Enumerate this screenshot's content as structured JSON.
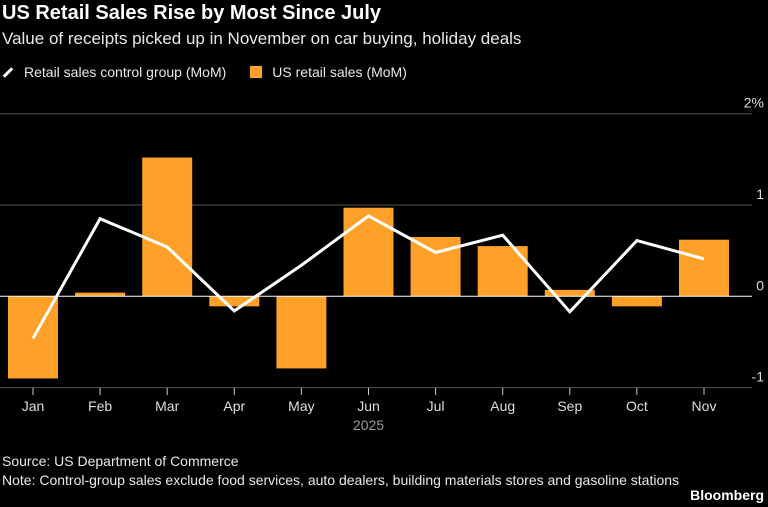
{
  "title": "US Retail Sales Rise by Most Since July",
  "subtitle": "Value of receipts picked up in November on car buying, holiday deals",
  "source": "Source: US Department of Commerce",
  "note": "Note: Control-group sales exclude food services, auto dealers, building materials stores and gasoline stations",
  "brand": "Bloomberg",
  "chart_data": {
    "type": "bar",
    "categories": [
      "Jan",
      "Feb",
      "Mar",
      "Apr",
      "May",
      "Jun",
      "Jul",
      "Aug",
      "Sep",
      "Oct",
      "Nov"
    ],
    "xlabel": "2025",
    "ylim": [
      -1,
      2
    ],
    "yticks": [
      {
        "v": 2,
        "label": "2%"
      },
      {
        "v": 1,
        "label": "1"
      },
      {
        "v": 0,
        "label": "0"
      },
      {
        "v": -1,
        "label": "-1"
      }
    ],
    "grid": true,
    "legend": "top-left",
    "series": [
      {
        "name": "Retail sales control group (MoM)",
        "type": "line",
        "color": "#ffffff",
        "values": [
          -0.46,
          0.85,
          0.54,
          -0.16,
          0.34,
          0.88,
          0.48,
          0.67,
          -0.17,
          0.61,
          0.41
        ]
      },
      {
        "name": "US retail sales (MoM)",
        "type": "bar",
        "color": "#ffa028",
        "values": [
          -0.9,
          0.04,
          1.52,
          -0.11,
          -0.79,
          0.97,
          0.65,
          0.55,
          0.07,
          -0.11,
          0.62
        ]
      }
    ]
  }
}
